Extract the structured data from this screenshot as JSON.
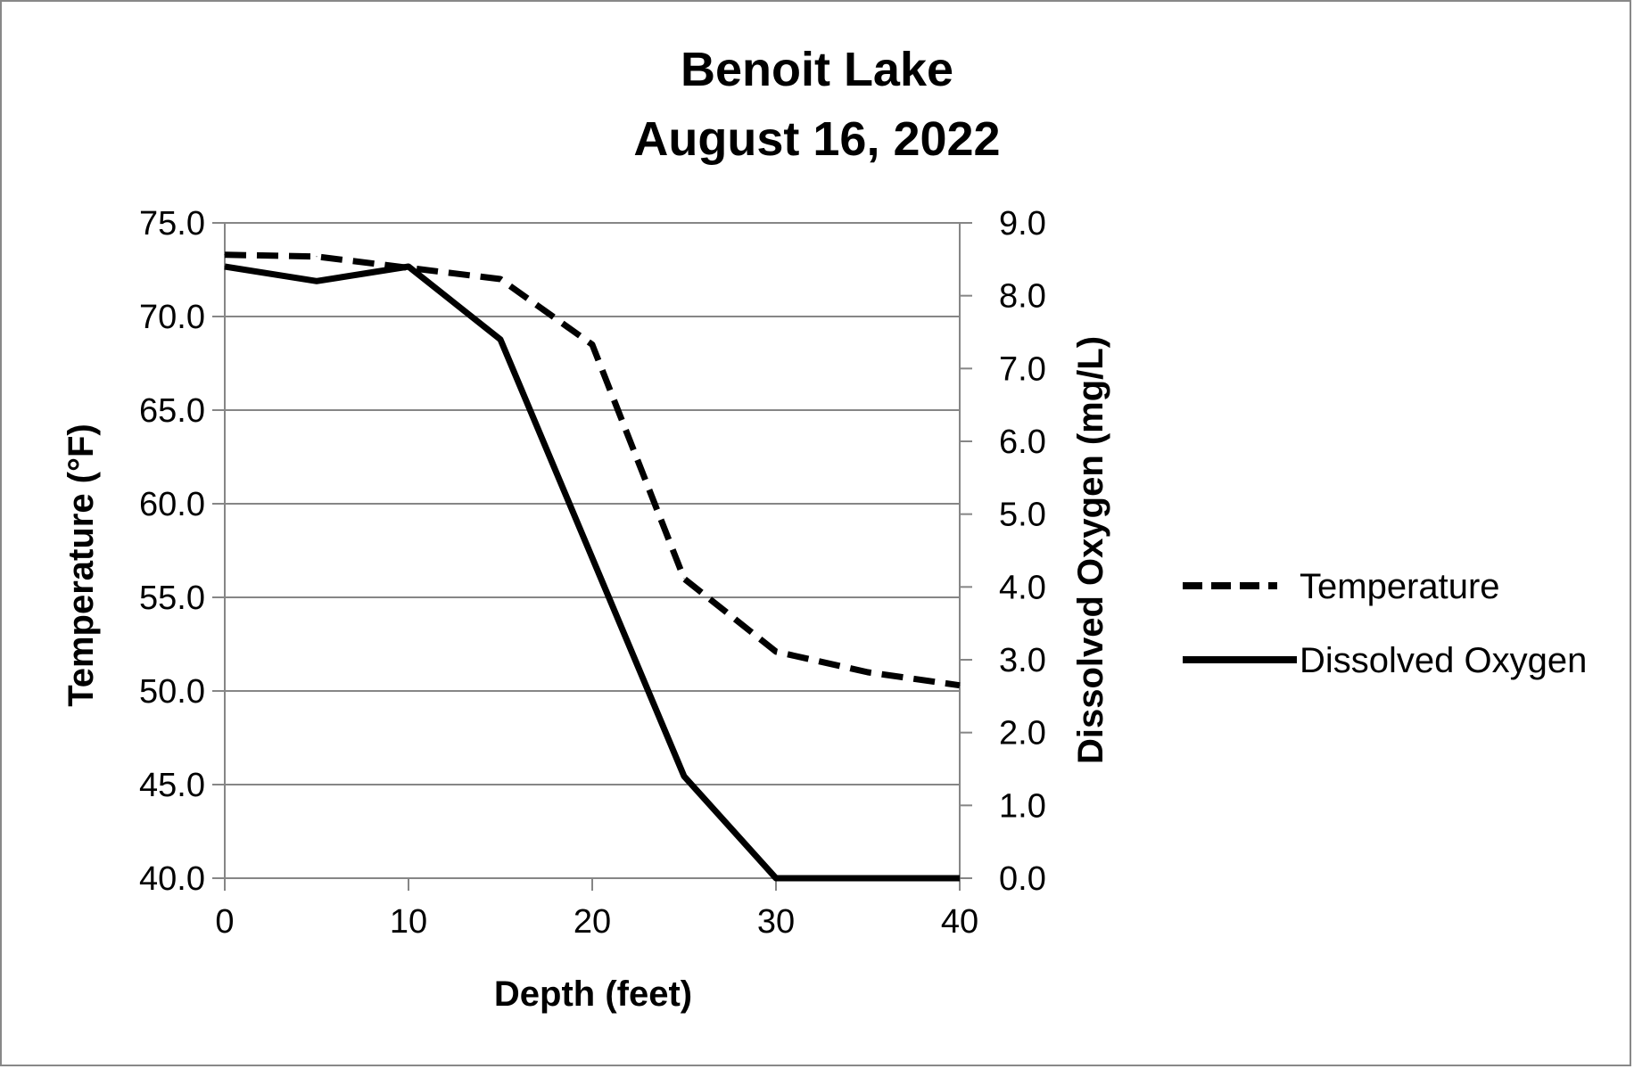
{
  "chart_data": {
    "type": "line",
    "title_lines": [
      "Benoit Lake",
      "August 16, 2022"
    ],
    "xlabel": "Depth (feet)",
    "ylabel_left": "Temperature (°F)",
    "ylabel_right": "Dissolved Oxygen (mg/L)",
    "xlim": [
      0,
      40
    ],
    "ylim_left": [
      40,
      75
    ],
    "ylim_right": [
      0,
      9
    ],
    "x_ticks": [
      "0",
      "10",
      "20",
      "30",
      "40"
    ],
    "y_ticks_left": [
      "40.0",
      "45.0",
      "50.0",
      "55.0",
      "60.0",
      "65.0",
      "70.0",
      "75.0"
    ],
    "y_ticks_right": [
      "0.0",
      "1.0",
      "2.0",
      "3.0",
      "4.0",
      "5.0",
      "6.0",
      "7.0",
      "8.0",
      "9.0"
    ],
    "grid": true,
    "legend_position": "right",
    "series": [
      {
        "name": "Temperature",
        "axis": "left",
        "style": "dashed",
        "color": "#000000",
        "x": [
          0,
          5,
          10,
          15,
          20,
          25,
          30,
          35,
          40
        ],
        "y": [
          73.3,
          73.2,
          72.6,
          72.0,
          68.5,
          56.0,
          52.1,
          51.0,
          50.3
        ]
      },
      {
        "name": "Dissolved Oxygen",
        "axis": "right",
        "style": "solid",
        "color": "#000000",
        "x": [
          0,
          5,
          10,
          15,
          20,
          25,
          30,
          35,
          40
        ],
        "y": [
          8.4,
          8.2,
          8.4,
          7.4,
          4.4,
          1.4,
          0.0,
          0.0,
          0.0
        ]
      }
    ]
  }
}
